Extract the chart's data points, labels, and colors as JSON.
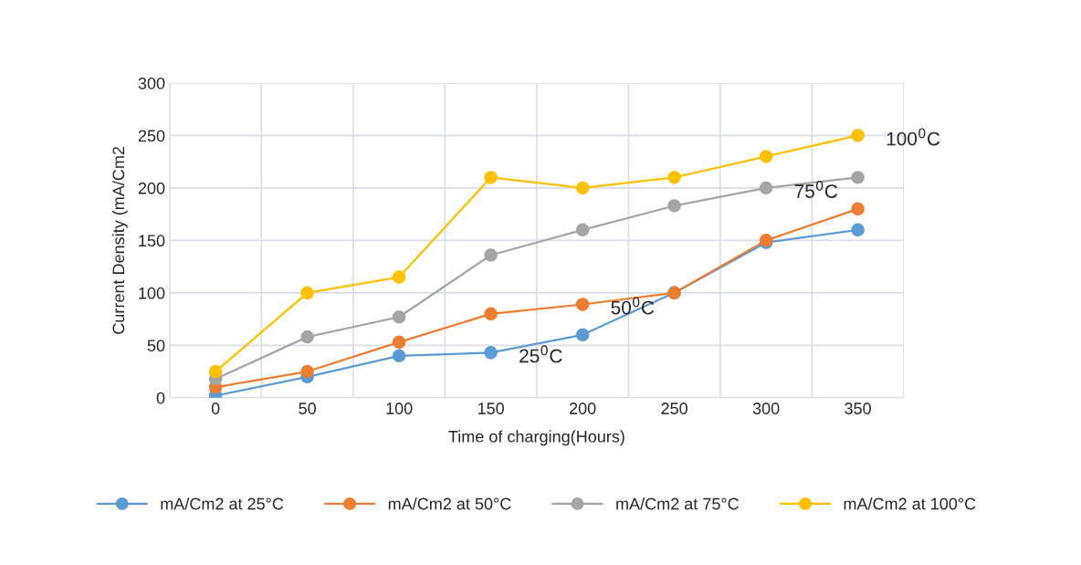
{
  "chart_data": {
    "type": "line",
    "xlabel": "Time of charging(Hours)",
    "ylabel": "Current Density (mA/Cm2",
    "categories": [
      "0",
      "50",
      "100",
      "150",
      "200",
      "250",
      "300",
      "350"
    ],
    "series": [
      {
        "name": "mA/Cm2 at 25°C",
        "color": "#5b9bd5",
        "values": [
          2,
          20,
          40,
          43,
          60,
          100,
          148,
          160
        ]
      },
      {
        "name": "mA/Cm2 at 50°C",
        "color": "#ed7d31",
        "values": [
          10,
          25,
          53,
          80,
          89,
          100,
          150,
          180
        ]
      },
      {
        "name": "mA/Cm2 at 75°C",
        "color": "#a5a5a5",
        "values": [
          18,
          58,
          77,
          136,
          160,
          183,
          200,
          210
        ]
      },
      {
        "name": "mA/Cm2 at 100°C",
        "color": "#ffc000",
        "values": [
          25,
          100,
          115,
          210,
          200,
          210,
          230,
          250
        ]
      }
    ],
    "annotations": [
      {
        "text": "25$^{0}$C",
        "x": "150",
        "y": 43
      },
      {
        "text": "50$^{0}$C",
        "x": "200",
        "y": 89
      },
      {
        "text": "75$^{0}$C",
        "x": "300",
        "y": 200
      },
      {
        "text": "100$^{0}$C",
        "x": "350",
        "y": 250
      }
    ],
    "ylim": [
      0,
      300
    ],
    "yticks": [
      0,
      50,
      100,
      150,
      200,
      250,
      300
    ],
    "grid": true,
    "legend": "bottom",
    "marker": "circle",
    "line_style": "solid"
  }
}
